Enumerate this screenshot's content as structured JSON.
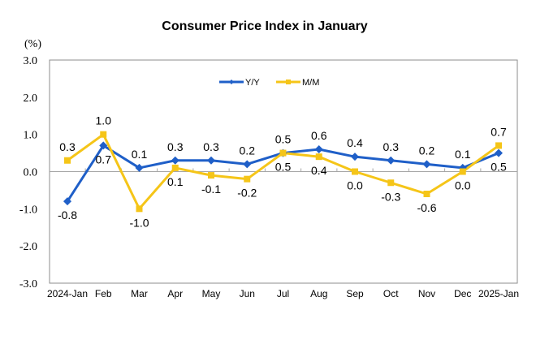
{
  "chart_data": {
    "type": "line",
    "title": "Consumer Price Index in January",
    "ylabel": "(%)",
    "xlabel": "",
    "categories": [
      "2024-Jan",
      "Feb",
      "Mar",
      "Apr",
      "May",
      "Jun",
      "Jul",
      "Aug",
      "Sep",
      "Oct",
      "Nov",
      "Dec",
      "2025-Jan"
    ],
    "ylim": [
      -3.0,
      3.0
    ],
    "yticks": [
      "3.0",
      "2.0",
      "1.0",
      "0.0",
      "-1.0",
      "-2.0",
      "-3.0"
    ],
    "ytick_values": [
      3,
      2,
      1,
      0,
      -1,
      -2,
      -3
    ],
    "grid": false,
    "legend": "top-center",
    "series": [
      {
        "name": "Y/Y",
        "color": "#1f5fc8",
        "marker": "diamond",
        "values": [
          -0.8,
          0.7,
          0.1,
          0.3,
          0.3,
          0.2,
          0.5,
          0.6,
          0.4,
          0.3,
          0.2,
          0.1,
          0.5
        ],
        "labels": [
          "-0.8",
          "0.7",
          "0.1",
          "0.3",
          "0.3",
          "0.2",
          "0.5",
          "0.6",
          "0.4",
          "0.3",
          "0.2",
          "0.1",
          "0.5"
        ],
        "label_pos": [
          "below",
          "below",
          "above",
          "above",
          "above",
          "above",
          "above",
          "above",
          "above",
          "above",
          "above",
          "above",
          "below"
        ]
      },
      {
        "name": "M/M",
        "color": "#f5c518",
        "marker": "square",
        "values": [
          0.3,
          1.0,
          -1.0,
          0.1,
          -0.1,
          -0.2,
          0.5,
          0.4,
          0.0,
          -0.3,
          -0.6,
          0.0,
          0.7
        ],
        "labels": [
          "0.3",
          "1.0",
          "-1.0",
          "0.1",
          "-0.1",
          "-0.2",
          "0.5",
          "0.4",
          "0.0",
          "-0.3",
          "-0.6",
          "0.0",
          "0.7"
        ],
        "label_pos": [
          "above",
          "above",
          "below",
          "below",
          "below",
          "below",
          "below",
          "below",
          "below",
          "below",
          "below",
          "below",
          "above"
        ]
      }
    ]
  }
}
